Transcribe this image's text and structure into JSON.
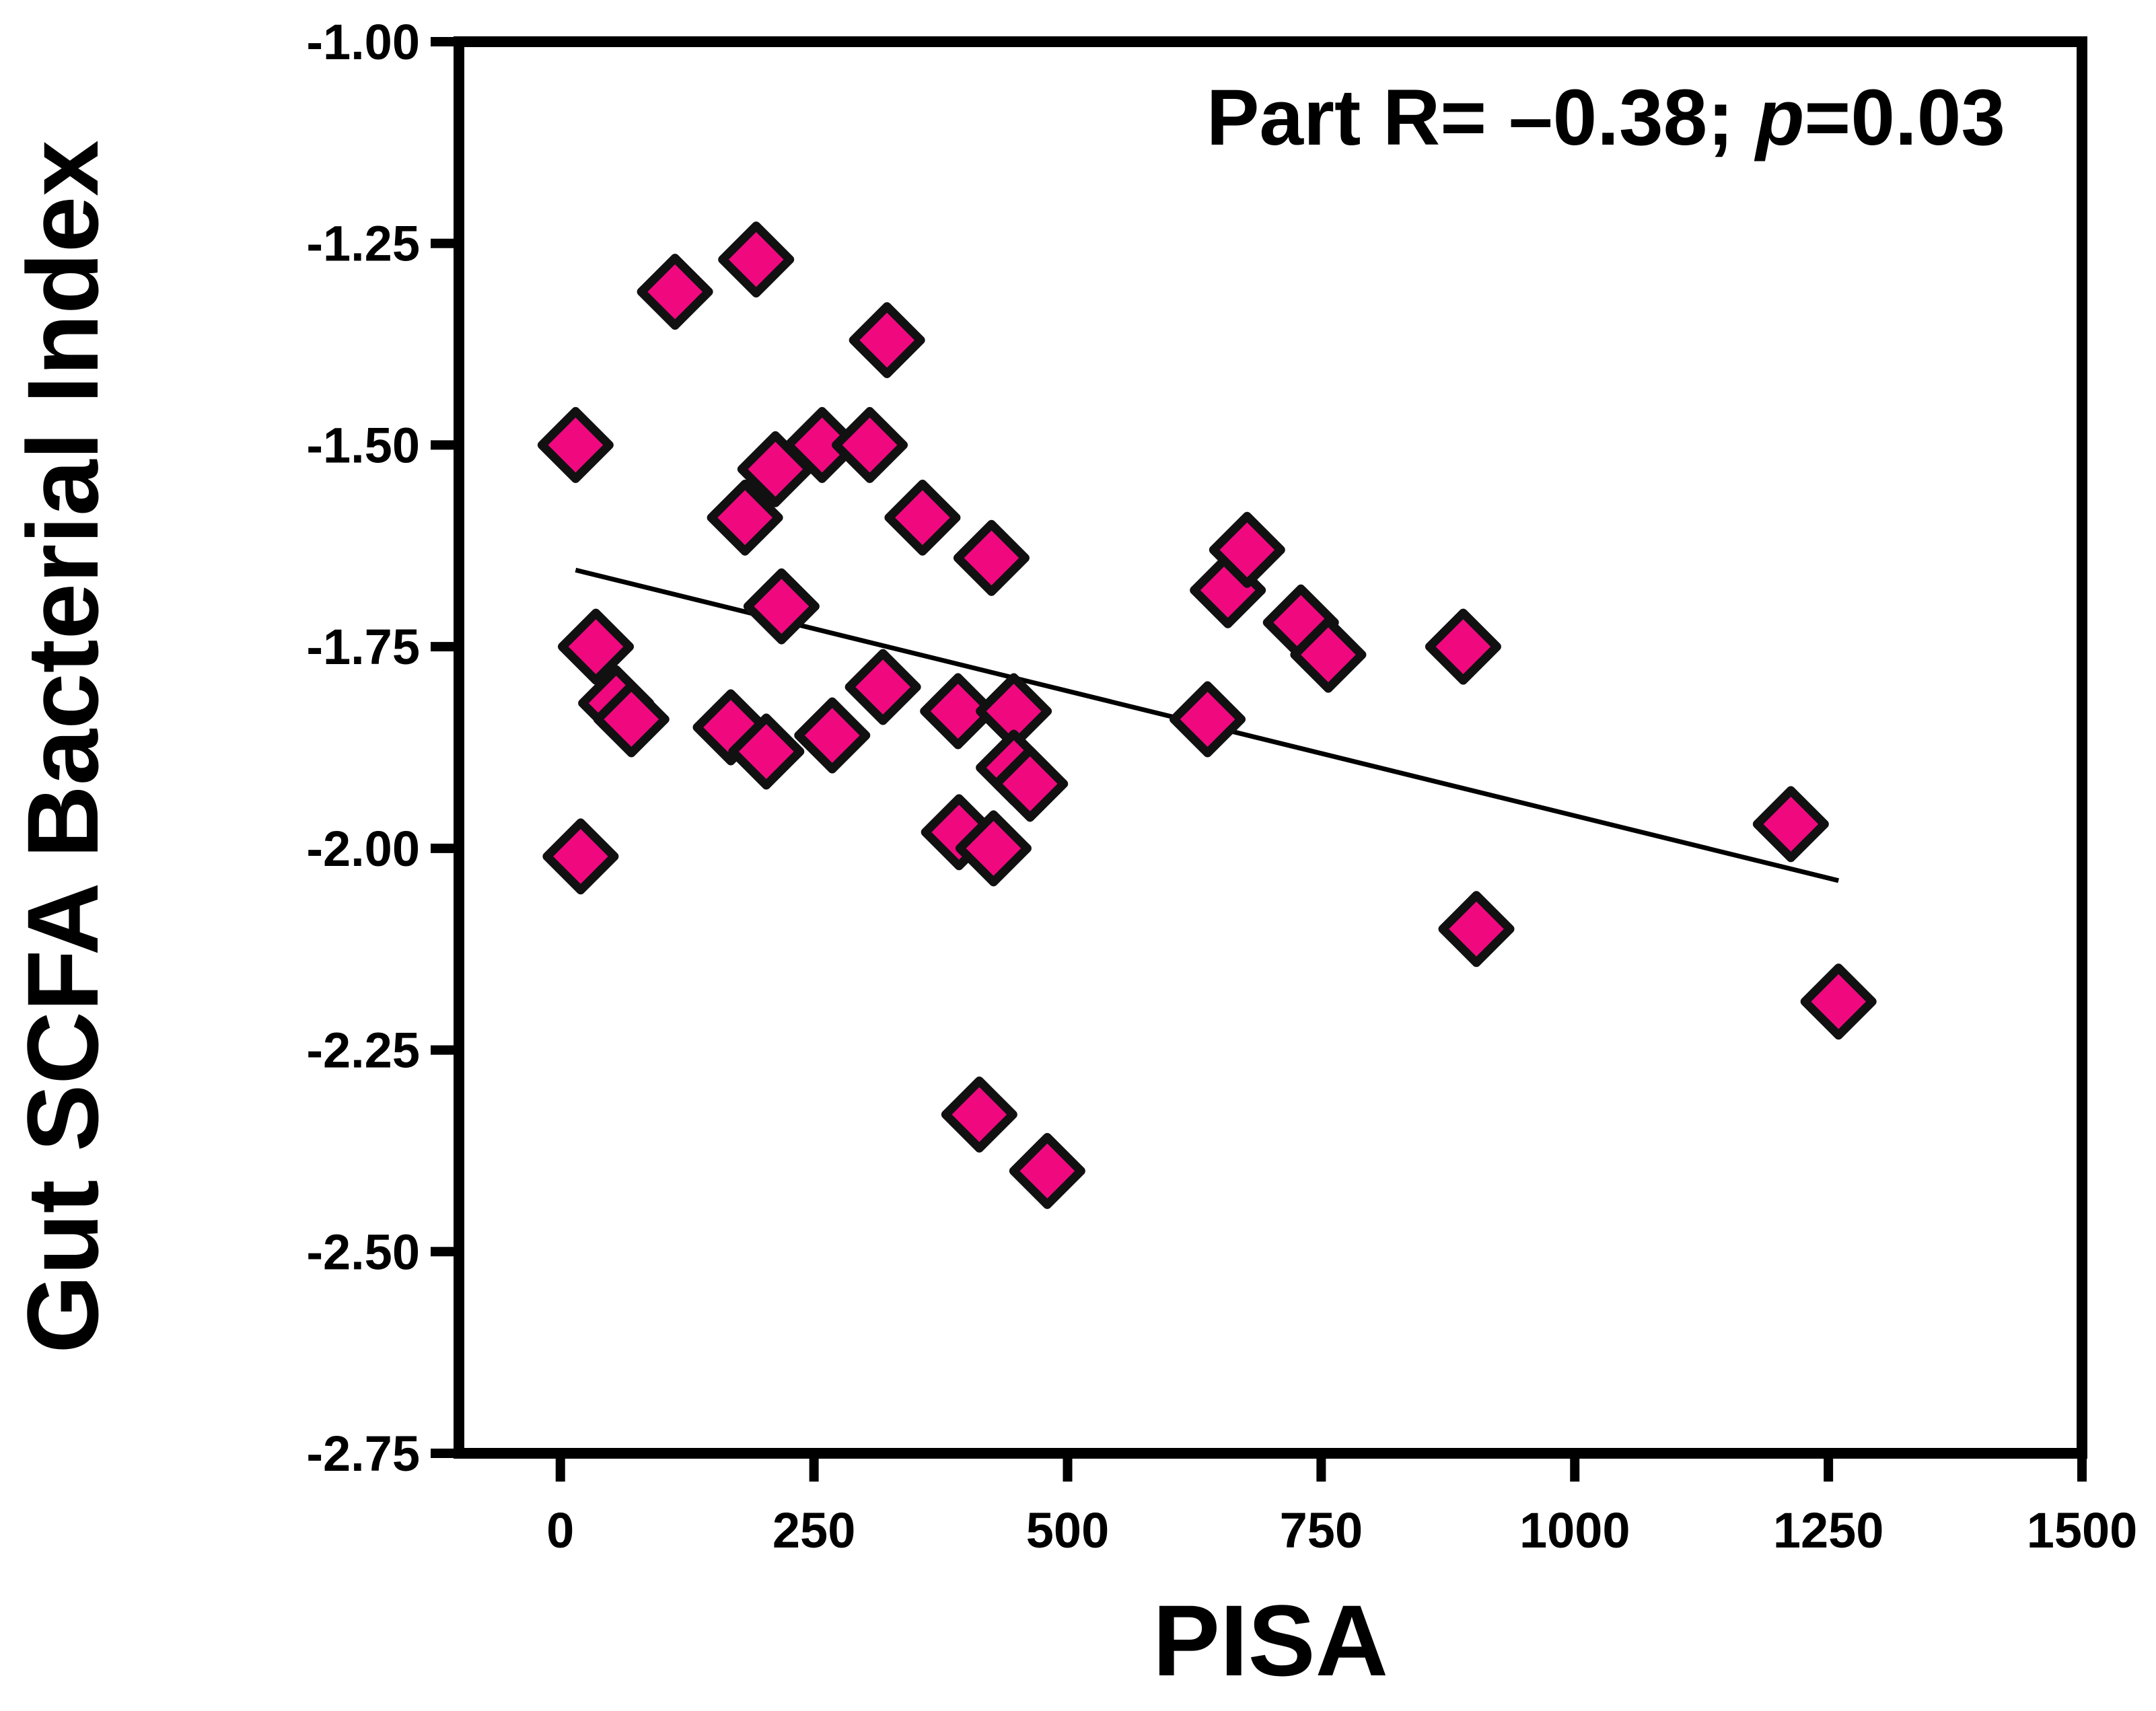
{
  "colors": {
    "marker_fill": "#f0087f",
    "marker_stroke": "#111111",
    "axis": "#000000"
  },
  "chart_data": {
    "type": "scatter",
    "xlabel": "PISA",
    "ylabel": "Gut SCFA Bacterial Index",
    "xlim": [
      -100,
      1500
    ],
    "ylim": [
      -2.75,
      -1.0
    ],
    "xticks": [
      0,
      250,
      500,
      750,
      1000,
      1250,
      1500
    ],
    "yticks": [
      -1.0,
      -1.25,
      -1.5,
      -1.75,
      -2.0,
      -2.25,
      -2.5,
      -2.75
    ],
    "xtick_labels": [
      "0",
      "250",
      "500",
      "750",
      "1000",
      "1250",
      "1500"
    ],
    "ytick_labels": [
      "-1.00",
      "-1.25",
      "-1.50",
      "-1.75",
      "-2.00",
      "-2.25",
      "-2.50",
      "-2.75"
    ],
    "annotation": {
      "prefix": "Part R= –0.38; ",
      "italic": "p",
      "suffix": "=0.03"
    },
    "marker": "diamond",
    "grid": false,
    "points": [
      {
        "x": 15,
        "y": -1.5
      },
      {
        "x": 35,
        "y": -1.75
      },
      {
        "x": 55,
        "y": -1.82
      },
      {
        "x": 70,
        "y": -1.84
      },
      {
        "x": 20,
        "y": -2.01
      },
      {
        "x": 113,
        "y": -1.31
      },
      {
        "x": 193,
        "y": -1.27
      },
      {
        "x": 182,
        "y": -1.59
      },
      {
        "x": 212,
        "y": -1.53
      },
      {
        "x": 218,
        "y": -1.7
      },
      {
        "x": 168,
        "y": -1.85
      },
      {
        "x": 203,
        "y": -1.88
      },
      {
        "x": 258,
        "y": -1.5
      },
      {
        "x": 268,
        "y": -1.86
      },
      {
        "x": 305,
        "y": -1.5
      },
      {
        "x": 318,
        "y": -1.8
      },
      {
        "x": 322,
        "y": -1.37
      },
      {
        "x": 357,
        "y": -1.59
      },
      {
        "x": 392,
        "y": -1.83
      },
      {
        "x": 393,
        "y": -1.98
      },
      {
        "x": 425,
        "y": -1.64
      },
      {
        "x": 427,
        "y": -2.0
      },
      {
        "x": 413,
        "y": -2.33
      },
      {
        "x": 447,
        "y": -1.83
      },
      {
        "x": 447,
        "y": -1.9
      },
      {
        "x": 463,
        "y": -1.92
      },
      {
        "x": 480,
        "y": -2.4
      },
      {
        "x": 638,
        "y": -1.84
      },
      {
        "x": 658,
        "y": -1.68
      },
      {
        "x": 677,
        "y": -1.63
      },
      {
        "x": 730,
        "y": -1.72
      },
      {
        "x": 757,
        "y": -1.76
      },
      {
        "x": 890,
        "y": -1.75
      },
      {
        "x": 903,
        "y": -2.1
      },
      {
        "x": 1213,
        "y": -1.97
      },
      {
        "x": 1260,
        "y": -2.19
      }
    ],
    "fit_line": {
      "x": [
        15,
        1260
      ],
      "y": [
        -1.655,
        -2.04
      ]
    }
  }
}
